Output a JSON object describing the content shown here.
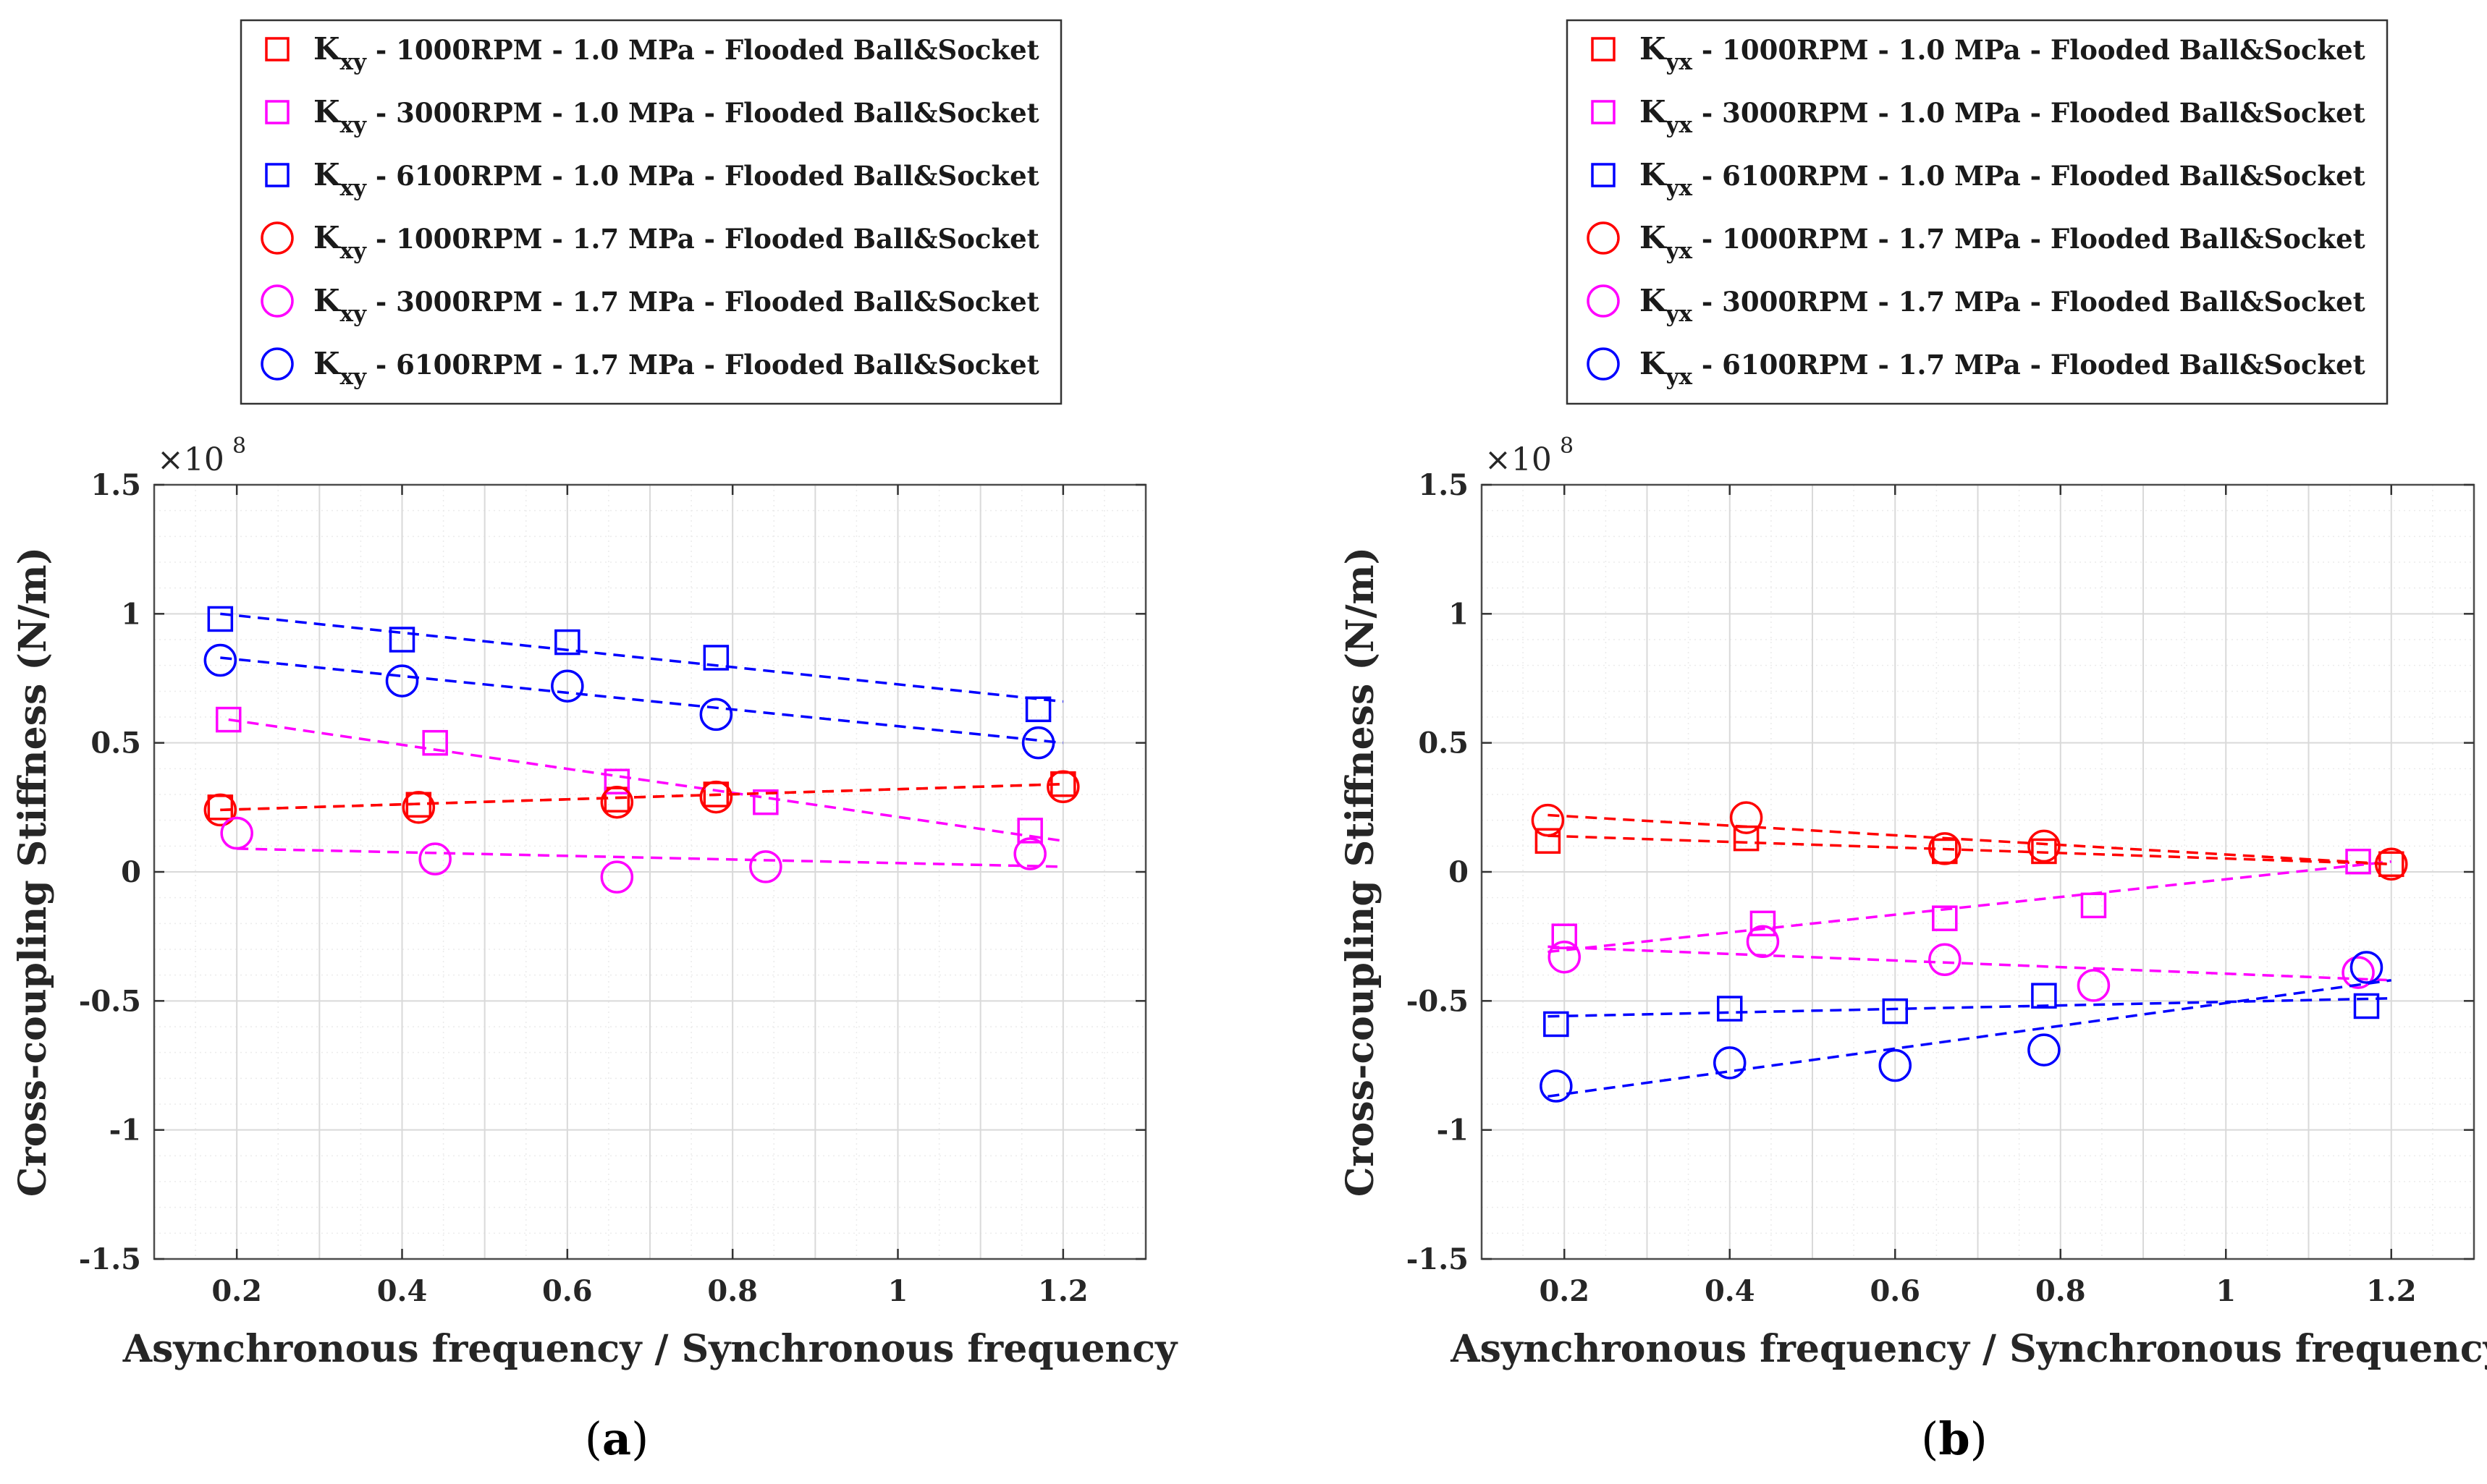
{
  "chart_data": [
    {
      "type": "scatter",
      "panel_label": "(a)",
      "xlabel": "Asynchronous frequency / Synchronous frequency",
      "ylabel": "Cross-coupling Stiffness (N/m)",
      "y_exponent_label": "×10",
      "y_exponent_power": "8",
      "xlim": [
        0.1,
        1.3
      ],
      "ylim": [
        -1.5,
        1.5
      ],
      "x_ticks": [
        0.2,
        0.4,
        0.6,
        0.8,
        1,
        1.2
      ],
      "x_tick_labels": [
        "0.2",
        "0.4",
        "0.6",
        "0.8",
        "1",
        "1.2"
      ],
      "y_ticks": [
        -1.5,
        -1,
        -0.5,
        0,
        0.5,
        1,
        1.5
      ],
      "y_tick_labels": [
        "-1.5",
        "-1",
        "-0.5",
        "0",
        "0.5",
        "1",
        "1.5"
      ],
      "grid": true,
      "legend_position": "top",
      "series": [
        {
          "name_main": "K",
          "name_sub": "xy",
          "name_rest": " - 1000RPM - 1.0 MPa - Flooded Ball&Socket",
          "marker": "square",
          "color": "#ff0000",
          "x": [
            0.18,
            0.42,
            0.66,
            0.78,
            1.2
          ],
          "y": [
            0.25,
            0.26,
            0.28,
            0.3,
            0.34
          ],
          "fit": [
            [
              0.18,
              0.24
            ],
            [
              1.2,
              0.34
            ]
          ]
        },
        {
          "name_main": "K",
          "name_sub": "xy",
          "name_rest": " - 3000RPM - 1.0 MPa - Flooded Ball&Socket",
          "marker": "square",
          "color": "#ff00ff",
          "x": [
            0.19,
            0.44,
            0.66,
            0.84,
            1.16
          ],
          "y": [
            0.59,
            0.5,
            0.35,
            0.27,
            0.16
          ],
          "fit": [
            [
              0.19,
              0.59
            ],
            [
              1.2,
              0.12
            ]
          ]
        },
        {
          "name_main": "K",
          "name_sub": "xy",
          "name_rest": " - 6100RPM - 1.0 MPa - Flooded Ball&Socket",
          "marker": "square",
          "color": "#0000ff",
          "x": [
            0.18,
            0.4,
            0.6,
            0.78,
            1.17
          ],
          "y": [
            0.98,
            0.9,
            0.89,
            0.83,
            0.63
          ],
          "fit": [
            [
              0.18,
              1.0
            ],
            [
              1.2,
              0.66
            ]
          ]
        },
        {
          "name_main": "K",
          "name_sub": "xy",
          "name_rest": " - 1000RPM - 1.7 MPa - Flooded Ball&Socket",
          "marker": "circle",
          "color": "#ff0000",
          "x": [
            0.18,
            0.42,
            0.66,
            0.78,
            1.2
          ],
          "y": [
            0.24,
            0.25,
            0.27,
            0.29,
            0.33
          ],
          "fit": [
            [
              0.18,
              0.24
            ],
            [
              1.2,
              0.34
            ]
          ]
        },
        {
          "name_main": "K",
          "name_sub": "xy",
          "name_rest": " - 3000RPM - 1.7 MPa - Flooded Ball&Socket",
          "marker": "circle",
          "color": "#ff00ff",
          "x": [
            0.2,
            0.44,
            0.66,
            0.84,
            1.16
          ],
          "y": [
            0.15,
            0.05,
            -0.02,
            0.02,
            0.07
          ],
          "fit": [
            [
              0.2,
              0.09
            ],
            [
              1.2,
              0.02
            ]
          ]
        },
        {
          "name_main": "K",
          "name_sub": "xy",
          "name_rest": " - 6100RPM - 1.7 MPa - Flooded Ball&Socket",
          "marker": "circle",
          "color": "#0000ff",
          "x": [
            0.18,
            0.4,
            0.6,
            0.78,
            1.17
          ],
          "y": [
            0.82,
            0.74,
            0.72,
            0.61,
            0.5
          ],
          "fit": [
            [
              0.18,
              0.83
            ],
            [
              1.2,
              0.5
            ]
          ]
        }
      ]
    },
    {
      "type": "scatter",
      "panel_label": "(b)",
      "xlabel": "Asynchronous frequency / Synchronous frequency",
      "ylabel": "Cross-coupling Stiffness (N/m)",
      "y_exponent_label": "×10",
      "y_exponent_power": "8",
      "xlim": [
        0.1,
        1.3
      ],
      "ylim": [
        -1.5,
        1.5
      ],
      "x_ticks": [
        0.2,
        0.4,
        0.6,
        0.8,
        1,
        1.2
      ],
      "x_tick_labels": [
        "0.2",
        "0.4",
        "0.6",
        "0.8",
        "1",
        "1.2"
      ],
      "y_ticks": [
        -1.5,
        -1,
        -0.5,
        0,
        0.5,
        1,
        1.5
      ],
      "y_tick_labels": [
        "-1.5",
        "-1",
        "-0.5",
        "0",
        "0.5",
        "1",
        "1.5"
      ],
      "grid": true,
      "legend_position": "top",
      "series": [
        {
          "name_main": "K",
          "name_sub": "yx",
          "name_rest": " - 1000RPM - 1.0 MPa - Flooded Ball&Socket",
          "marker": "square",
          "color": "#ff0000",
          "x": [
            0.18,
            0.42,
            0.66,
            0.78,
            1.2
          ],
          "y": [
            0.12,
            0.13,
            0.08,
            0.08,
            0.03
          ],
          "fit": [
            [
              0.18,
              0.14
            ],
            [
              1.2,
              0.03
            ]
          ]
        },
        {
          "name_main": "K",
          "name_sub": "yx",
          "name_rest": " - 3000RPM - 1.0 MPa - Flooded Ball&Socket",
          "marker": "square",
          "color": "#ff00ff",
          "x": [
            0.2,
            0.44,
            0.66,
            0.84,
            1.16
          ],
          "y": [
            -0.25,
            -0.2,
            -0.18,
            -0.13,
            0.04
          ],
          "fit": [
            [
              0.18,
              -0.31
            ],
            [
              1.2,
              0.04
            ]
          ]
        },
        {
          "name_main": "K",
          "name_sub": "yx",
          "name_rest": " - 6100RPM - 1.0 MPa - Flooded Ball&Socket",
          "marker": "square",
          "color": "#0000ff",
          "x": [
            0.19,
            0.4,
            0.6,
            0.78,
            1.17
          ],
          "y": [
            -0.59,
            -0.53,
            -0.54,
            -0.48,
            -0.52
          ],
          "fit": [
            [
              0.18,
              -0.56
            ],
            [
              1.2,
              -0.49
            ]
          ]
        },
        {
          "name_main": "K",
          "name_sub": "yx",
          "name_rest": " - 1000RPM - 1.7 MPa - Flooded Ball&Socket",
          "marker": "circle",
          "color": "#ff0000",
          "x": [
            0.18,
            0.42,
            0.66,
            0.78,
            1.2
          ],
          "y": [
            0.2,
            0.21,
            0.09,
            0.1,
            0.03
          ],
          "fit": [
            [
              0.18,
              0.22
            ],
            [
              1.2,
              0.03
            ]
          ]
        },
        {
          "name_main": "K",
          "name_sub": "yx",
          "name_rest": " - 3000RPM - 1.7 MPa - Flooded Ball&Socket",
          "marker": "circle",
          "color": "#ff00ff",
          "x": [
            0.2,
            0.44,
            0.66,
            0.84,
            1.16
          ],
          "y": [
            -0.33,
            -0.27,
            -0.34,
            -0.44,
            -0.39
          ],
          "fit": [
            [
              0.18,
              -0.29
            ],
            [
              1.2,
              -0.42
            ]
          ]
        },
        {
          "name_main": "K",
          "name_sub": "yx",
          "name_rest": " - 6100RPM - 1.7 MPa - Flooded Ball&Socket",
          "marker": "circle",
          "color": "#0000ff",
          "x": [
            0.19,
            0.4,
            0.6,
            0.78,
            1.17
          ],
          "y": [
            -0.83,
            -0.74,
            -0.75,
            -0.69,
            -0.37
          ],
          "fit": [
            [
              0.18,
              -0.87
            ],
            [
              1.2,
              -0.42
            ]
          ]
        }
      ]
    }
  ]
}
